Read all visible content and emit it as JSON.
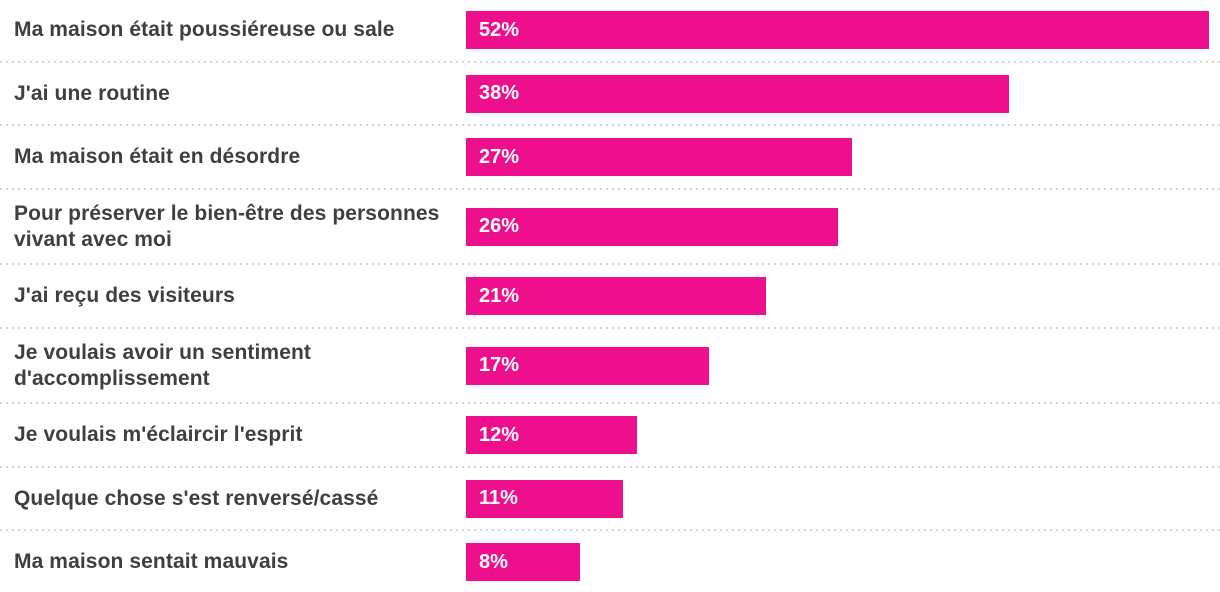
{
  "chart_data": {
    "type": "bar",
    "orientation": "horizontal",
    "title": "",
    "xlabel": "",
    "ylabel": "",
    "legend": "none",
    "grid": "off",
    "axis_visible": false,
    "categories": [
      "Ma maison était poussiéreuse ou sale",
      "J'ai une routine",
      "Ma maison était en désordre",
      "Pour préserver le bien-être des personnes vivant avec moi",
      "J'ai reçu des visiteurs",
      "Je voulais avoir un sentiment d'accomplissement",
      "Je voulais m'éclaircir l'esprit",
      "Quelque chose s'est renversé/cassé",
      "Ma maison sentait mauvais"
    ],
    "values": [
      52,
      38,
      27,
      26,
      21,
      17,
      12,
      11,
      8
    ],
    "value_labels": [
      "52%",
      "38%",
      "27%",
      "26%",
      "21%",
      "17%",
      "12%",
      "11%",
      "8%"
    ],
    "max_value": 52,
    "bar_color": "#ed0f8c",
    "label_color": "#3f3f3f",
    "value_label_color": "#ffffff",
    "divider_color": "#d5d5d5"
  }
}
